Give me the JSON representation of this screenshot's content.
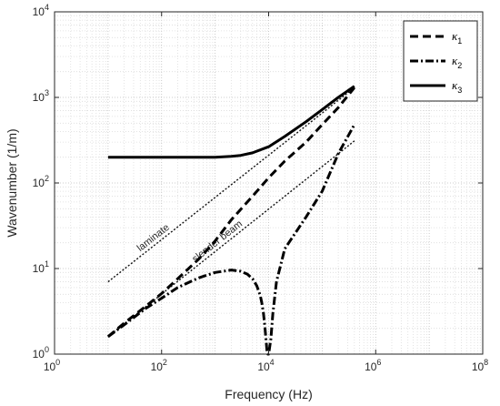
{
  "chart_data": {
    "type": "line",
    "xlabel": "Frequency (Hz)",
    "ylabel": "Wavenumber (1/m)",
    "xscale": "log",
    "yscale": "log",
    "xlim": [
      1,
      100000000
    ],
    "ylim": [
      1,
      10000
    ],
    "x_ticks": [
      {
        "base": "10",
        "exp": "0"
      },
      {
        "base": "10",
        "exp": "2"
      },
      {
        "base": "10",
        "exp": "4"
      },
      {
        "base": "10",
        "exp": "6"
      },
      {
        "base": "10",
        "exp": "8"
      }
    ],
    "y_ticks": [
      {
        "base": "10",
        "exp": "0"
      },
      {
        "base": "10",
        "exp": "1"
      },
      {
        "base": "10",
        "exp": "2"
      },
      {
        "base": "10",
        "exp": "3"
      },
      {
        "base": "10",
        "exp": "4"
      }
    ],
    "grid": "major and minor, dotted",
    "legend_position": "top-right",
    "series": [
      {
        "name": "κ1",
        "legend_symbol": "κ",
        "legend_sub": "1",
        "line_style": "dashed",
        "x": [
          10,
          20,
          50,
          100,
          200,
          500,
          1000,
          2000,
          5000,
          10000,
          20000,
          50000,
          100000,
          200000,
          400000
        ],
        "y": [
          1.6,
          2.3,
          3.6,
          5.1,
          7.6,
          13,
          21,
          37,
          70,
          115,
          180,
          300,
          480,
          760,
          1300
        ]
      },
      {
        "name": "κ2",
        "legend_symbol": "κ",
        "legend_sub": "2",
        "line_style": "dash-dot",
        "x": [
          10,
          20,
          50,
          100,
          200,
          500,
          1000,
          2000,
          3000,
          4000,
          5000,
          6000,
          7000,
          7500,
          8000,
          8500,
          9000,
          9300,
          9600,
          10000,
          11000,
          12000,
          14000,
          20000,
          50000,
          100000,
          200000,
          400000
        ],
        "y": [
          1.6,
          2.2,
          3.4,
          4.5,
          6.0,
          7.8,
          9.0,
          9.6,
          9.3,
          8.6,
          7.6,
          6.3,
          4.8,
          3.9,
          3.0,
          2.1,
          1.4,
          1.1,
          1.0,
          1.0,
          1.5,
          3.0,
          7.0,
          17,
          40,
          80,
          220,
          480
        ]
      },
      {
        "name": "κ3",
        "legend_symbol": "κ",
        "legend_sub": "3",
        "line_style": "solid",
        "x": [
          10,
          100,
          1000,
          2000,
          3000,
          5000,
          10000,
          20000,
          50000,
          100000,
          200000,
          400000
        ],
        "y": [
          200,
          200,
          200,
          205,
          210,
          225,
          265,
          350,
          520,
          720,
          1000,
          1350
        ]
      }
    ],
    "reference_lines": [
      {
        "label": "laminate",
        "line_style": "dotted",
        "x": [
          10,
          400000
        ],
        "y": [
          7,
          1300
        ]
      },
      {
        "label": "slender beam",
        "line_style": "dotted",
        "x": [
          10,
          400000
        ],
        "y": [
          1.6,
          310
        ]
      }
    ]
  }
}
